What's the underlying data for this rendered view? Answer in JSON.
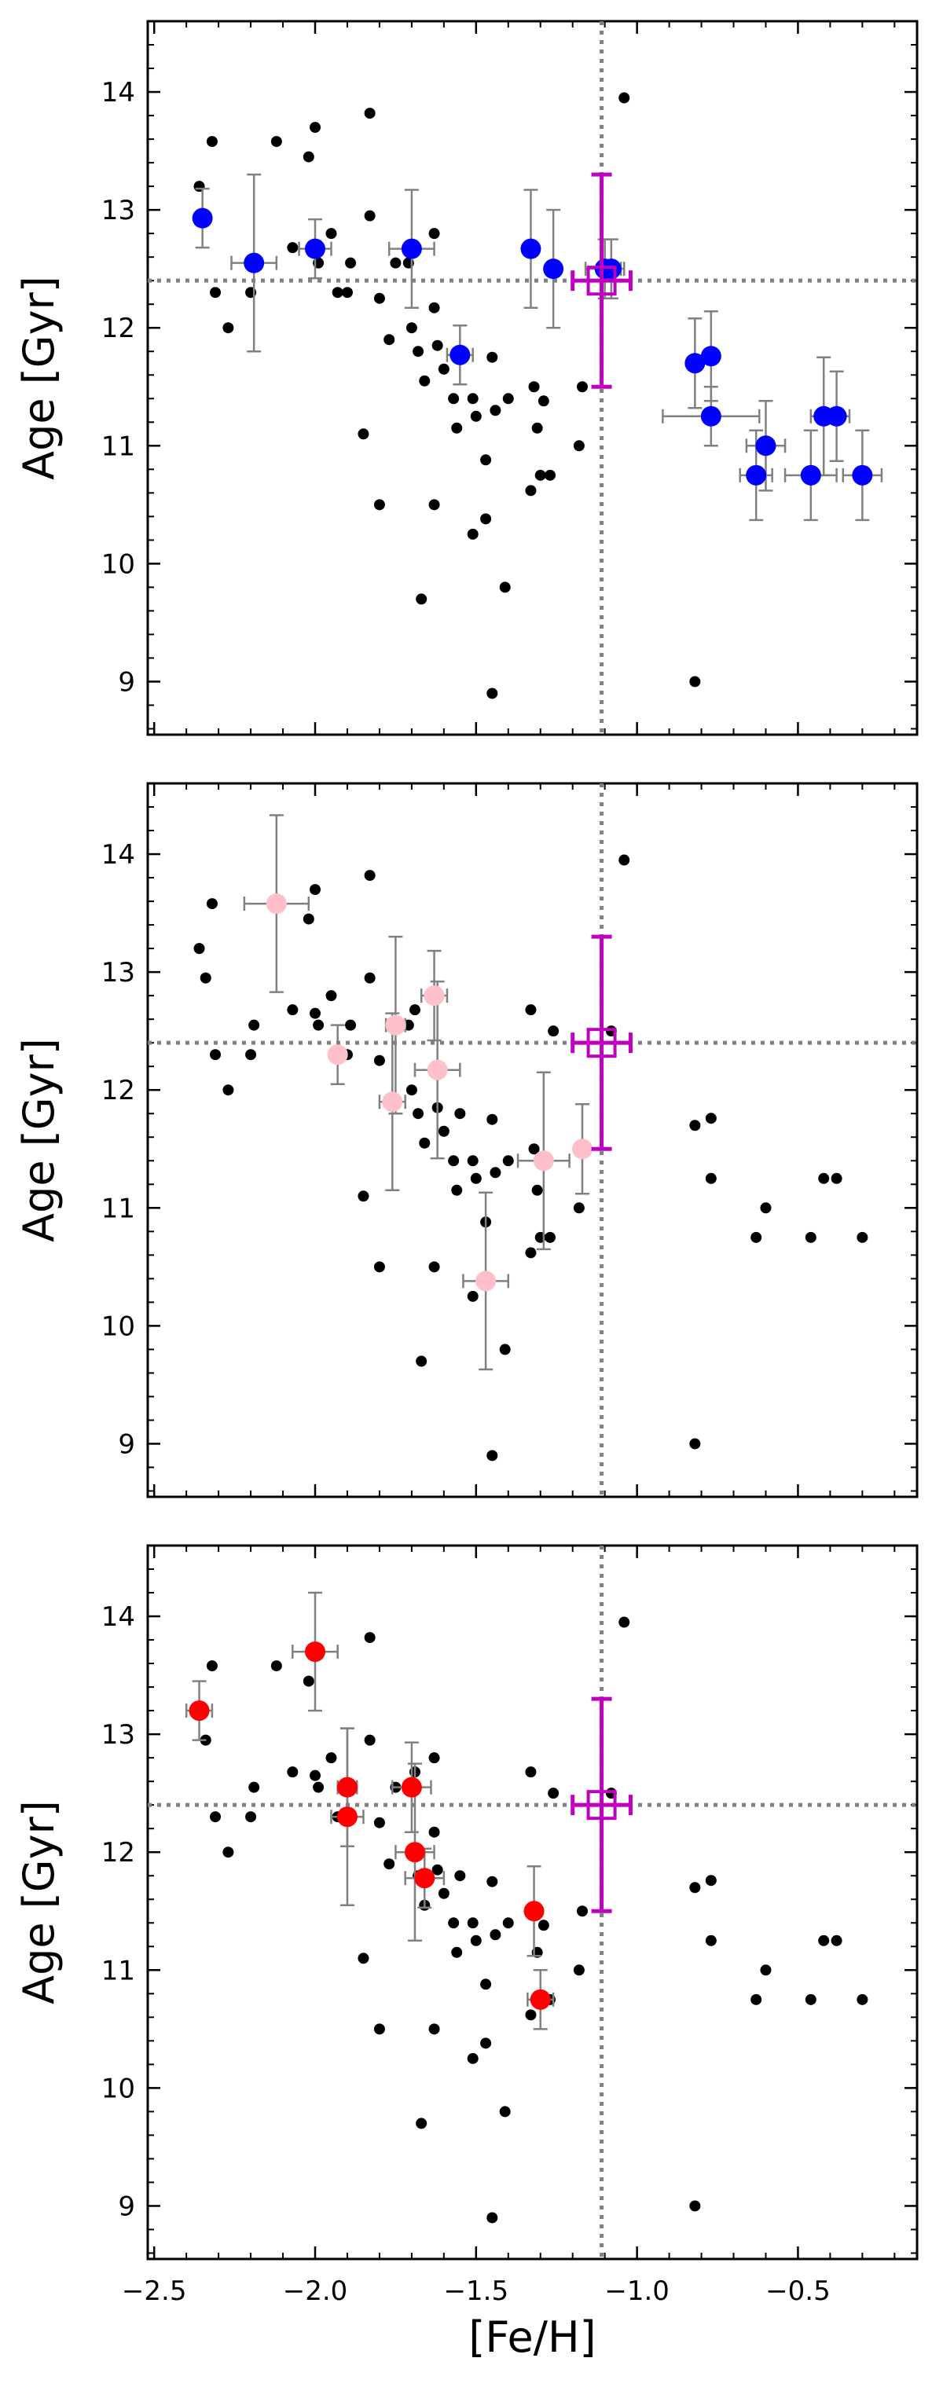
{
  "chart_data": [
    {
      "type": "scatter",
      "ylabel": "Age [Gyr]",
      "xlabel": "",
      "xlim": [
        -2.52,
        -0.13
      ],
      "ylim": [
        8.55,
        14.6
      ],
      "x_ticks": [
        -2.5,
        -2.0,
        -1.5,
        -1.0,
        -0.5
      ],
      "y_ticks": [
        9,
        10,
        11,
        12,
        13,
        14
      ],
      "reference_lines": {
        "feh": -1.11,
        "age": 12.4
      },
      "reference_point": {
        "x": -1.11,
        "y": 12.4,
        "xerr": 0.09,
        "yerr": 0.9,
        "color": "#bf00bf"
      },
      "series": [
        {
          "color": "#0000ff",
          "points": [
            {
              "x": -2.35,
              "y": 12.93,
              "xerr": 0.0,
              "yerr": 0.25
            },
            {
              "x": -2.19,
              "y": 12.55,
              "xerr": 0.07,
              "yerr": 0.75
            },
            {
              "x": -2.0,
              "y": 12.67,
              "xerr": 0.05,
              "yerr": 0.25
            },
            {
              "x": -1.7,
              "y": 12.67,
              "xerr": 0.07,
              "yerr": 0.5
            },
            {
              "x": -1.55,
              "y": 11.77,
              "xerr": 0.04,
              "yerr": 0.25
            },
            {
              "x": -1.33,
              "y": 12.67,
              "xerr": 0.0,
              "yerr": 0.5
            },
            {
              "x": -1.26,
              "y": 12.5,
              "xerr": 0.0,
              "yerr": 0.5
            },
            {
              "x": -1.1,
              "y": 12.5,
              "xerr": 0.06,
              "yerr": 0.25
            },
            {
              "x": -1.08,
              "y": 12.5,
              "xerr": 0.03,
              "yerr": 0.25
            },
            {
              "x": -0.82,
              "y": 11.7,
              "xerr": 0.0,
              "yerr": 0.38
            },
            {
              "x": -0.77,
              "y": 11.76,
              "xerr": 0.0,
              "yerr": 0.38
            },
            {
              "x": -0.77,
              "y": 11.25,
              "xerr": 0.15,
              "yerr": 0.25
            },
            {
              "x": -0.6,
              "y": 11.0,
              "xerr": 0.06,
              "yerr": 0.38
            },
            {
              "x": -0.63,
              "y": 10.75,
              "xerr": 0.05,
              "yerr": 0.38
            },
            {
              "x": -0.42,
              "y": 11.25,
              "xerr": 0.04,
              "yerr": 0.5
            },
            {
              "x": -0.38,
              "y": 11.25,
              "xerr": 0.04,
              "yerr": 0.38
            },
            {
              "x": -0.46,
              "y": 10.75,
              "xerr": 0.08,
              "yerr": 0.38
            },
            {
              "x": -0.3,
              "y": 10.75,
              "xerr": 0.06,
              "yerr": 0.38
            }
          ]
        }
      ]
    },
    {
      "type": "scatter",
      "ylabel": "Age [Gyr]",
      "xlabel": "",
      "xlim": [
        -2.52,
        -0.13
      ],
      "ylim": [
        8.55,
        14.6
      ],
      "x_ticks": [
        -2.5,
        -2.0,
        -1.5,
        -1.0,
        -0.5
      ],
      "y_ticks": [
        9,
        10,
        11,
        12,
        13,
        14
      ],
      "reference_lines": {
        "feh": -1.11,
        "age": 12.4
      },
      "reference_point": {
        "x": -1.11,
        "y": 12.4,
        "xerr": 0.09,
        "yerr": 0.9,
        "color": "#bf00bf"
      },
      "series": [
        {
          "color": "#ffc0cb",
          "points": [
            {
              "x": -2.12,
              "y": 13.58,
              "xerr": 0.1,
              "yerr": 0.75
            },
            {
              "x": -1.93,
              "y": 12.3,
              "xerr": 0.02,
              "yerr": 0.25
            },
            {
              "x": -1.75,
              "y": 12.55,
              "xerr": 0.03,
              "yerr": 0.75
            },
            {
              "x": -1.63,
              "y": 12.8,
              "xerr": 0.04,
              "yerr": 0.38
            },
            {
              "x": -1.76,
              "y": 11.9,
              "xerr": 0.04,
              "yerr": 0.75
            },
            {
              "x": -1.62,
              "y": 12.17,
              "xerr": 0.07,
              "yerr": 0.75
            },
            {
              "x": -1.29,
              "y": 11.4,
              "xerr": 0.08,
              "yerr": 0.75
            },
            {
              "x": -1.17,
              "y": 11.5,
              "xerr": 0.0,
              "yerr": 0.38
            },
            {
              "x": -1.47,
              "y": 10.38,
              "xerr": 0.07,
              "yerr": 0.75
            }
          ]
        }
      ]
    },
    {
      "type": "scatter",
      "ylabel": "Age [Gyr]",
      "xlabel": "[Fe/H]",
      "xlim": [
        -2.52,
        -0.13
      ],
      "ylim": [
        8.55,
        14.6
      ],
      "x_ticks": [
        -2.5,
        -2.0,
        -1.5,
        -1.0,
        -0.5
      ],
      "y_ticks": [
        9,
        10,
        11,
        12,
        13,
        14
      ],
      "reference_lines": {
        "feh": -1.11,
        "age": 12.4
      },
      "reference_point": {
        "x": -1.11,
        "y": 12.4,
        "xerr": 0.09,
        "yerr": 0.9,
        "color": "#bf00bf"
      },
      "series": [
        {
          "color": "#ff0000",
          "points": [
            {
              "x": -2.36,
              "y": 13.2,
              "xerr": 0.04,
              "yerr": 0.25
            },
            {
              "x": -2.0,
              "y": 13.7,
              "xerr": 0.07,
              "yerr": 0.5
            },
            {
              "x": -1.9,
              "y": 12.55,
              "xerr": 0.03,
              "yerr": 0.5
            },
            {
              "x": -1.9,
              "y": 12.3,
              "xerr": 0.05,
              "yerr": 0.75
            },
            {
              "x": -1.7,
              "y": 12.55,
              "xerr": 0.06,
              "yerr": 0.38
            },
            {
              "x": -1.69,
              "y": 12.0,
              "xerr": 0.06,
              "yerr": 0.75
            },
            {
              "x": -1.66,
              "y": 11.78,
              "xerr": 0.06,
              "yerr": 0.25
            },
            {
              "x": -1.32,
              "y": 11.5,
              "xerr": 0.0,
              "yerr": 0.38
            },
            {
              "x": -1.3,
              "y": 10.75,
              "xerr": 0.04,
              "yerr": 0.25
            }
          ]
        }
      ]
    }
  ],
  "background_points": [
    {
      "x": -2.36,
      "y": 13.2
    },
    {
      "x": -2.32,
      "y": 13.58
    },
    {
      "x": -2.31,
      "y": 12.3
    },
    {
      "x": -2.27,
      "y": 12.0
    },
    {
      "x": -2.34,
      "y": 12.95
    },
    {
      "x": -2.2,
      "y": 12.3
    },
    {
      "x": -2.19,
      "y": 12.55
    },
    {
      "x": -2.12,
      "y": 13.58
    },
    {
      "x": -2.07,
      "y": 12.68
    },
    {
      "x": -2.02,
      "y": 13.45
    },
    {
      "x": -2.0,
      "y": 13.7
    },
    {
      "x": -2.0,
      "y": 12.65
    },
    {
      "x": -1.99,
      "y": 12.55
    },
    {
      "x": -1.95,
      "y": 12.8
    },
    {
      "x": -1.93,
      "y": 12.3
    },
    {
      "x": -1.9,
      "y": 12.3
    },
    {
      "x": -1.89,
      "y": 12.55
    },
    {
      "x": -1.85,
      "y": 11.1
    },
    {
      "x": -1.83,
      "y": 13.82
    },
    {
      "x": -1.83,
      "y": 12.95
    },
    {
      "x": -1.8,
      "y": 12.25
    },
    {
      "x": -1.8,
      "y": 10.5
    },
    {
      "x": -1.77,
      "y": 11.9
    },
    {
      "x": -1.75,
      "y": 12.55
    },
    {
      "x": -1.71,
      "y": 12.55
    },
    {
      "x": -1.7,
      "y": 12.0
    },
    {
      "x": -1.69,
      "y": 12.68
    },
    {
      "x": -1.68,
      "y": 11.8
    },
    {
      "x": -1.66,
      "y": 11.55
    },
    {
      "x": -1.63,
      "y": 12.8
    },
    {
      "x": -1.63,
      "y": 12.17
    },
    {
      "x": -1.62,
      "y": 11.85
    },
    {
      "x": -1.6,
      "y": 11.65
    },
    {
      "x": -1.57,
      "y": 11.4
    },
    {
      "x": -1.56,
      "y": 11.15
    },
    {
      "x": -1.55,
      "y": 11.8
    },
    {
      "x": -1.51,
      "y": 11.4
    },
    {
      "x": -1.5,
      "y": 11.25
    },
    {
      "x": -1.47,
      "y": 10.88
    },
    {
      "x": -1.45,
      "y": 11.75
    },
    {
      "x": -1.44,
      "y": 11.3
    },
    {
      "x": -1.4,
      "y": 11.4
    },
    {
      "x": -1.33,
      "y": 12.68
    },
    {
      "x": -1.32,
      "y": 11.5
    },
    {
      "x": -1.31,
      "y": 11.15
    },
    {
      "x": -1.3,
      "y": 10.75
    },
    {
      "x": -1.29,
      "y": 11.38
    },
    {
      "x": -1.27,
      "y": 10.75
    },
    {
      "x": -1.26,
      "y": 12.5
    },
    {
      "x": -1.33,
      "y": 10.62
    },
    {
      "x": -1.17,
      "y": 11.5
    },
    {
      "x": -1.18,
      "y": 11.0
    },
    {
      "x": -1.08,
      "y": 12.5
    },
    {
      "x": -1.04,
      "y": 13.95
    },
    {
      "x": -1.51,
      "y": 10.25
    },
    {
      "x": -1.47,
      "y": 10.38
    },
    {
      "x": -1.63,
      "y": 10.5
    },
    {
      "x": -1.41,
      "y": 9.8
    },
    {
      "x": -1.67,
      "y": 9.7
    },
    {
      "x": -1.45,
      "y": 8.9
    },
    {
      "x": -0.82,
      "y": 9.0
    },
    {
      "x": -0.82,
      "y": 11.7
    },
    {
      "x": -0.77,
      "y": 11.76
    },
    {
      "x": -0.77,
      "y": 11.25
    },
    {
      "x": -0.6,
      "y": 11.0
    },
    {
      "x": -0.63,
      "y": 10.75
    },
    {
      "x": -0.42,
      "y": 11.25
    },
    {
      "x": -0.38,
      "y": 11.25
    },
    {
      "x": -0.46,
      "y": 10.75
    },
    {
      "x": -0.3,
      "y": 10.75
    }
  ]
}
